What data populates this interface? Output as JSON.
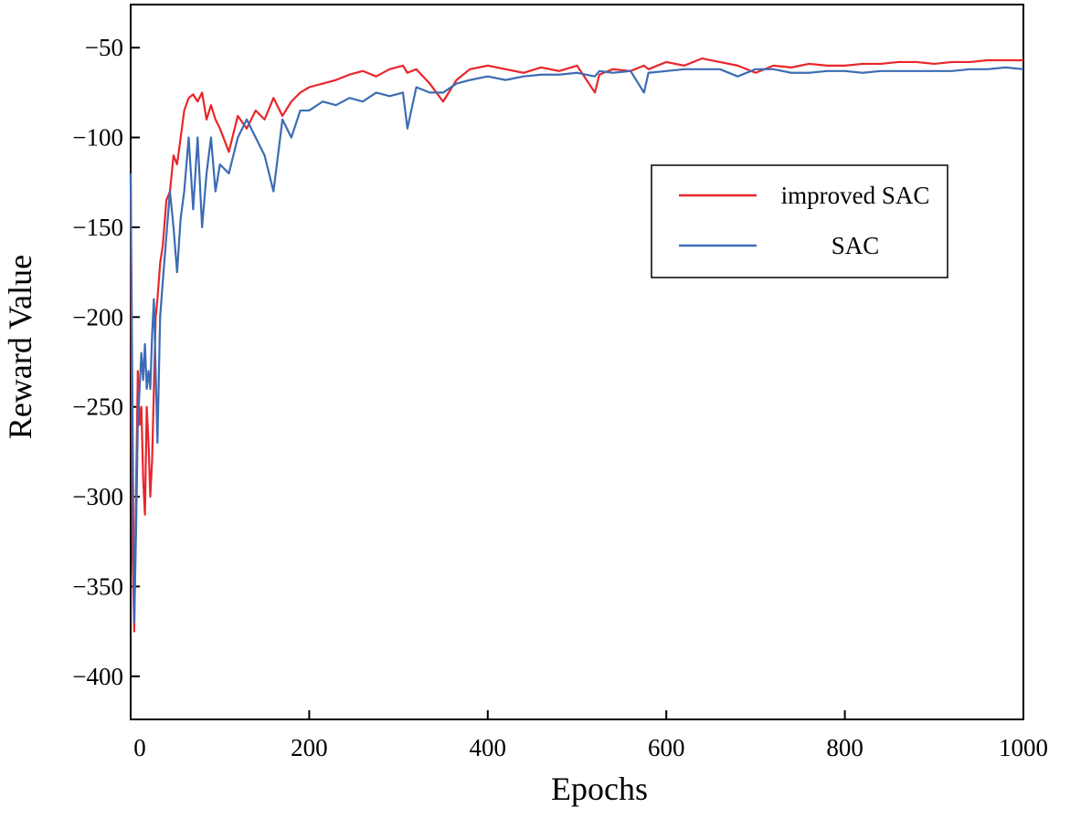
{
  "chart_data": {
    "type": "line",
    "xlabel": "Epochs",
    "ylabel": "Reward Value",
    "x": [
      0,
      2,
      4,
      6,
      8,
      10,
      12,
      14,
      16,
      18,
      20,
      22,
      24,
      26,
      28,
      30,
      33,
      36,
      40,
      44,
      48,
      52,
      56,
      60,
      65,
      70,
      75,
      80,
      85,
      90,
      95,
      100,
      110,
      120,
      130,
      140,
      150,
      160,
      170,
      180,
      190,
      200,
      215,
      230,
      245,
      260,
      275,
      290,
      305,
      310,
      320,
      335,
      350,
      365,
      380,
      400,
      420,
      440,
      460,
      480,
      500,
      520,
      525,
      540,
      560,
      575,
      580,
      600,
      620,
      640,
      660,
      680,
      700,
      720,
      740,
      760,
      780,
      800,
      820,
      840,
      860,
      880,
      900,
      920,
      940,
      960,
      980,
      1000
    ],
    "series": [
      {
        "name": "improved SAC",
        "color": "#e8262b",
        "values": [
          -120,
          -330,
          -375,
          -300,
          -230,
          -260,
          -250,
          -290,
          -310,
          -250,
          -270,
          -300,
          -280,
          -240,
          -200,
          -190,
          -170,
          -160,
          -135,
          -130,
          -110,
          -115,
          -100,
          -85,
          -78,
          -76,
          -80,
          -75,
          -90,
          -82,
          -90,
          -95,
          -108,
          -88,
          -95,
          -85,
          -90,
          -78,
          -88,
          -80,
          -75,
          -72,
          -70,
          -68,
          -65,
          -63,
          -66,
          -62,
          -60,
          -64,
          -62,
          -70,
          -80,
          -68,
          -62,
          -60,
          -62,
          -64,
          -61,
          -63,
          -60,
          -75,
          -65,
          -62,
          -63,
          -60,
          -62,
          -58,
          -60,
          -56,
          -58,
          -60,
          -64,
          -60,
          -61,
          -59,
          -60,
          -60,
          -59,
          -59,
          -58,
          -58,
          -59,
          -58,
          -58,
          -57,
          -57,
          -57
        ]
      },
      {
        "name": "SAC",
        "color": "#3c6cb4",
        "values": [
          -120,
          -250,
          -370,
          -320,
          -260,
          -240,
          -220,
          -235,
          -215,
          -240,
          -230,
          -240,
          -210,
          -190,
          -230,
          -270,
          -200,
          -180,
          -155,
          -130,
          -150,
          -175,
          -145,
          -130,
          -100,
          -140,
          -100,
          -150,
          -120,
          -100,
          -130,
          -115,
          -120,
          -100,
          -90,
          -100,
          -110,
          -130,
          -90,
          -100,
          -85,
          -85,
          -80,
          -82,
          -78,
          -80,
          -75,
          -77,
          -75,
          -95,
          -72,
          -75,
          -75,
          -70,
          -68,
          -66,
          -68,
          -66,
          -65,
          -65,
          -64,
          -66,
          -63,
          -64,
          -63,
          -75,
          -64,
          -63,
          -62,
          -62,
          -62,
          -66,
          -62,
          -62,
          -64,
          -64,
          -63,
          -63,
          -64,
          -63,
          -63,
          -63,
          -63,
          -63,
          -62,
          -62,
          -61,
          -62
        ]
      }
    ],
    "xlim": [
      0,
      1000
    ],
    "ylim": [
      -424,
      -26
    ],
    "xticks": [
      0,
      200,
      400,
      600,
      800,
      1000
    ],
    "yticks": [
      {
        "value": -400,
        "label": "−400"
      },
      {
        "value": -350,
        "label": "−350"
      },
      {
        "value": -300,
        "label": "−300"
      },
      {
        "value": -250,
        "label": "−250"
      },
      {
        "value": -200,
        "label": "−200"
      },
      {
        "value": -150,
        "label": "−150"
      },
      {
        "value": -100,
        "label": "−100"
      },
      {
        "value": -50,
        "label": "−50"
      }
    ],
    "grid": false,
    "legend": "upper right"
  }
}
